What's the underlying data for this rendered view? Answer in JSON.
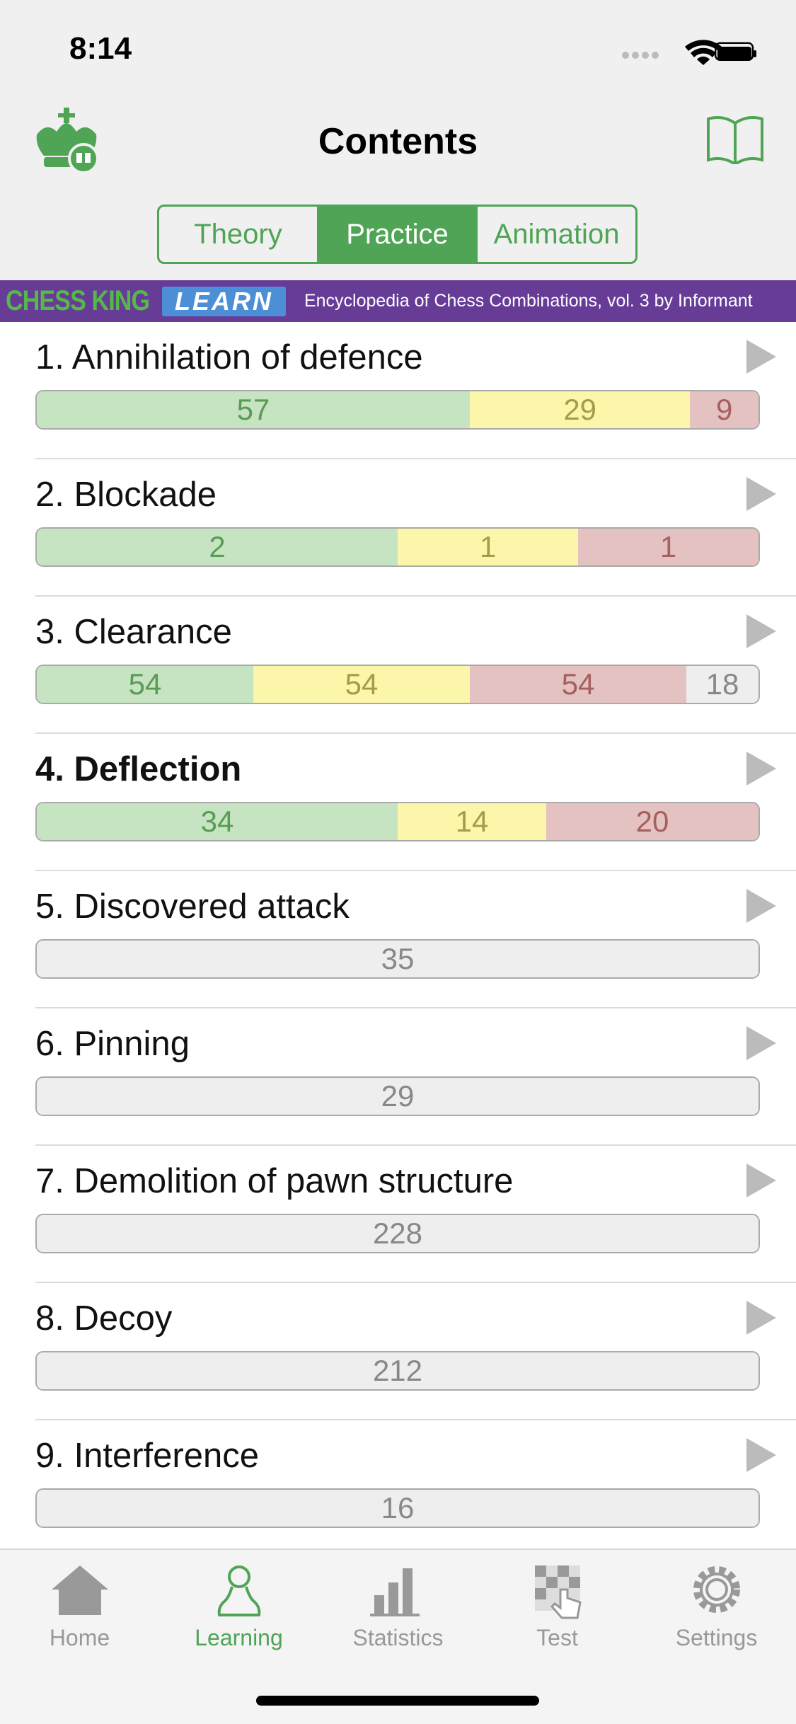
{
  "status_bar": {
    "time": "8:14"
  },
  "header": {
    "title": "Contents"
  },
  "tabs": {
    "items": [
      "Theory",
      "Practice",
      "Animation"
    ],
    "selected": 1
  },
  "banner": {
    "brand": "CHESS KING",
    "badge": "LEARN",
    "text": "Encyclopedia of Chess Combinations, vol. 3 by Informant"
  },
  "list": {
    "items": [
      {
        "title": "1. Annihilation of defence",
        "solved": 57,
        "partial": 29,
        "failed": 9
      },
      {
        "title": "2. Blockade",
        "solved": 2,
        "partial": 1,
        "failed": 1
      },
      {
        "title": "3. Clearance",
        "solved": 54,
        "partial": 54,
        "failed": 54,
        "unsolved": 18
      },
      {
        "title": "4. Deflection",
        "solved": 34,
        "partial": 14,
        "failed": 20,
        "current": true
      },
      {
        "title": "5. Discovered attack",
        "unsolved": 35
      },
      {
        "title": "6. Pinning",
        "unsolved": 29
      },
      {
        "title": "7. Demolition of pawn structure",
        "unsolved": 228
      },
      {
        "title": "8. Decoy",
        "unsolved": 212
      },
      {
        "title": "9. Interference",
        "unsolved": 16
      }
    ]
  },
  "tab_bar": {
    "items": [
      "Home",
      "Learning",
      "Statistics",
      "Test",
      "Settings"
    ],
    "selected": 1
  }
}
